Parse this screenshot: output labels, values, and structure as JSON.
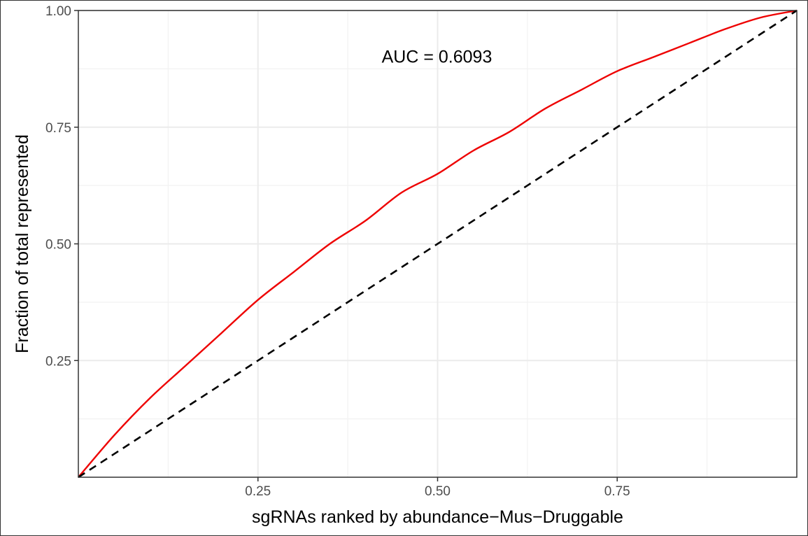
{
  "chart_data": {
    "type": "line",
    "xlabel": "sgRNAs ranked by abundance−Mus−Druggable",
    "ylabel": "Fraction of total represented",
    "xlim": [
      0,
      1
    ],
    "ylim": [
      0,
      1
    ],
    "x_ticks": [
      0.25,
      0.5,
      0.75
    ],
    "x_tick_labels": [
      "0.25",
      "0.50",
      "0.75"
    ],
    "y_ticks": [
      0.25,
      0.5,
      0.75,
      1.0
    ],
    "y_tick_labels": [
      "0.25",
      "0.50",
      "0.75",
      "1.00"
    ],
    "grid": true,
    "annotation": {
      "text": "AUC = 0.6093",
      "x": 0.5,
      "y": 0.9
    },
    "series": [
      {
        "style": "solid",
        "color": "#ee0000",
        "x": [
          0,
          0.05,
          0.1,
          0.15,
          0.2,
          0.25,
          0.3,
          0.35,
          0.4,
          0.45,
          0.5,
          0.55,
          0.6,
          0.65,
          0.7,
          0.75,
          0.8,
          0.85,
          0.9,
          0.95,
          1.0
        ],
        "y": [
          0,
          0.09,
          0.17,
          0.24,
          0.31,
          0.38,
          0.44,
          0.5,
          0.55,
          0.61,
          0.65,
          0.7,
          0.74,
          0.79,
          0.83,
          0.87,
          0.9,
          0.93,
          0.96,
          0.985,
          1.0
        ]
      },
      {
        "style": "dashed",
        "color": "#000000",
        "x": [
          0,
          1
        ],
        "y": [
          0,
          1
        ]
      }
    ]
  }
}
